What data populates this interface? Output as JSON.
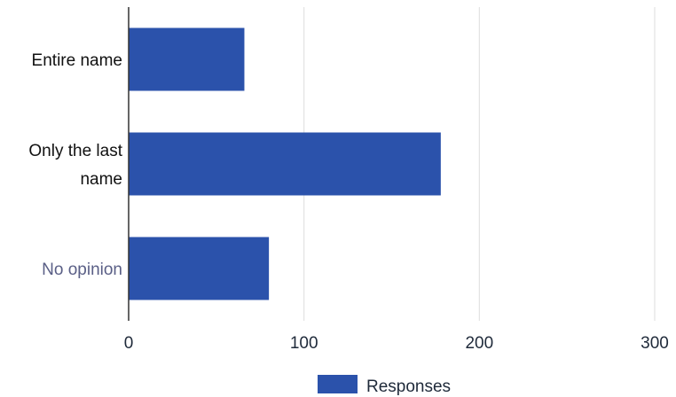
{
  "chart_data": {
    "type": "bar",
    "orientation": "horizontal",
    "categories": [
      "Entire name",
      "Only the last name",
      "No opinion"
    ],
    "category_label_lines": [
      [
        "Entire name"
      ],
      [
        "Only the last",
        "name"
      ],
      [
        "No opinion"
      ]
    ],
    "category_label_colors": [
      "#111111",
      "#111111",
      "#5a5f86"
    ],
    "series": [
      {
        "name": "Responses",
        "values": [
          66,
          178,
          80
        ],
        "color": "#2b52ab"
      }
    ],
    "xlim": [
      0,
      300
    ],
    "xticks": [
      0,
      100,
      200,
      300
    ],
    "xtick_labels": [
      "0",
      "100",
      "200",
      "300"
    ],
    "grid": "vertical",
    "legend_position": "bottom"
  }
}
